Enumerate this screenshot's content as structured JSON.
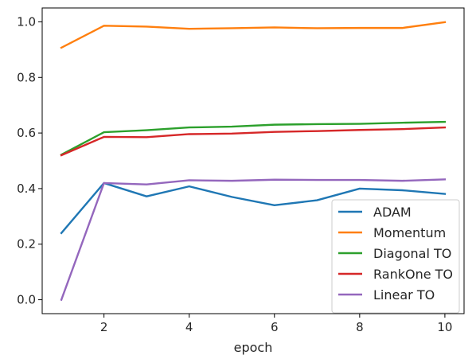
{
  "chart_data": {
    "type": "line",
    "title": "",
    "xlabel": "epoch",
    "ylabel": "",
    "x": [
      1,
      2,
      3,
      4,
      5,
      6,
      7,
      8,
      9,
      10
    ],
    "xlim": [
      0.55,
      10.45
    ],
    "ylim": [
      -0.05,
      1.05
    ],
    "xticks": [
      2,
      4,
      6,
      8,
      10
    ],
    "yticks": [
      0.0,
      0.2,
      0.4,
      0.6,
      0.8,
      1.0
    ],
    "xtick_labels": [
      "2",
      "4",
      "6",
      "8",
      "10"
    ],
    "ytick_labels": [
      "0.0",
      "0.2",
      "0.4",
      "0.6",
      "0.8",
      "1.0"
    ],
    "grid": false,
    "legend_position": "lower-right",
    "series": [
      {
        "name": "ADAM",
        "color": "#1f77b4",
        "values": [
          0.24,
          0.42,
          0.372,
          0.408,
          0.37,
          0.34,
          0.358,
          0.4,
          0.394,
          0.381
        ]
      },
      {
        "name": "Momentum",
        "color": "#ff7f0e",
        "values": [
          0.907,
          0.986,
          0.983,
          0.975,
          0.977,
          0.98,
          0.977,
          0.978,
          0.978,
          0.999
        ]
      },
      {
        "name": "Diagonal TO",
        "color": "#2ca02c",
        "values": [
          0.522,
          0.603,
          0.61,
          0.62,
          0.623,
          0.63,
          0.632,
          0.633,
          0.637,
          0.64
        ]
      },
      {
        "name": "RankOne TO",
        "color": "#d62728",
        "values": [
          0.52,
          0.586,
          0.585,
          0.596,
          0.598,
          0.604,
          0.607,
          0.611,
          0.614,
          0.62
        ]
      },
      {
        "name": "Linear TO",
        "color": "#9467bd",
        "values": [
          0.0,
          0.42,
          0.415,
          0.43,
          0.428,
          0.432,
          0.431,
          0.431,
          0.428,
          0.433
        ]
      }
    ]
  }
}
